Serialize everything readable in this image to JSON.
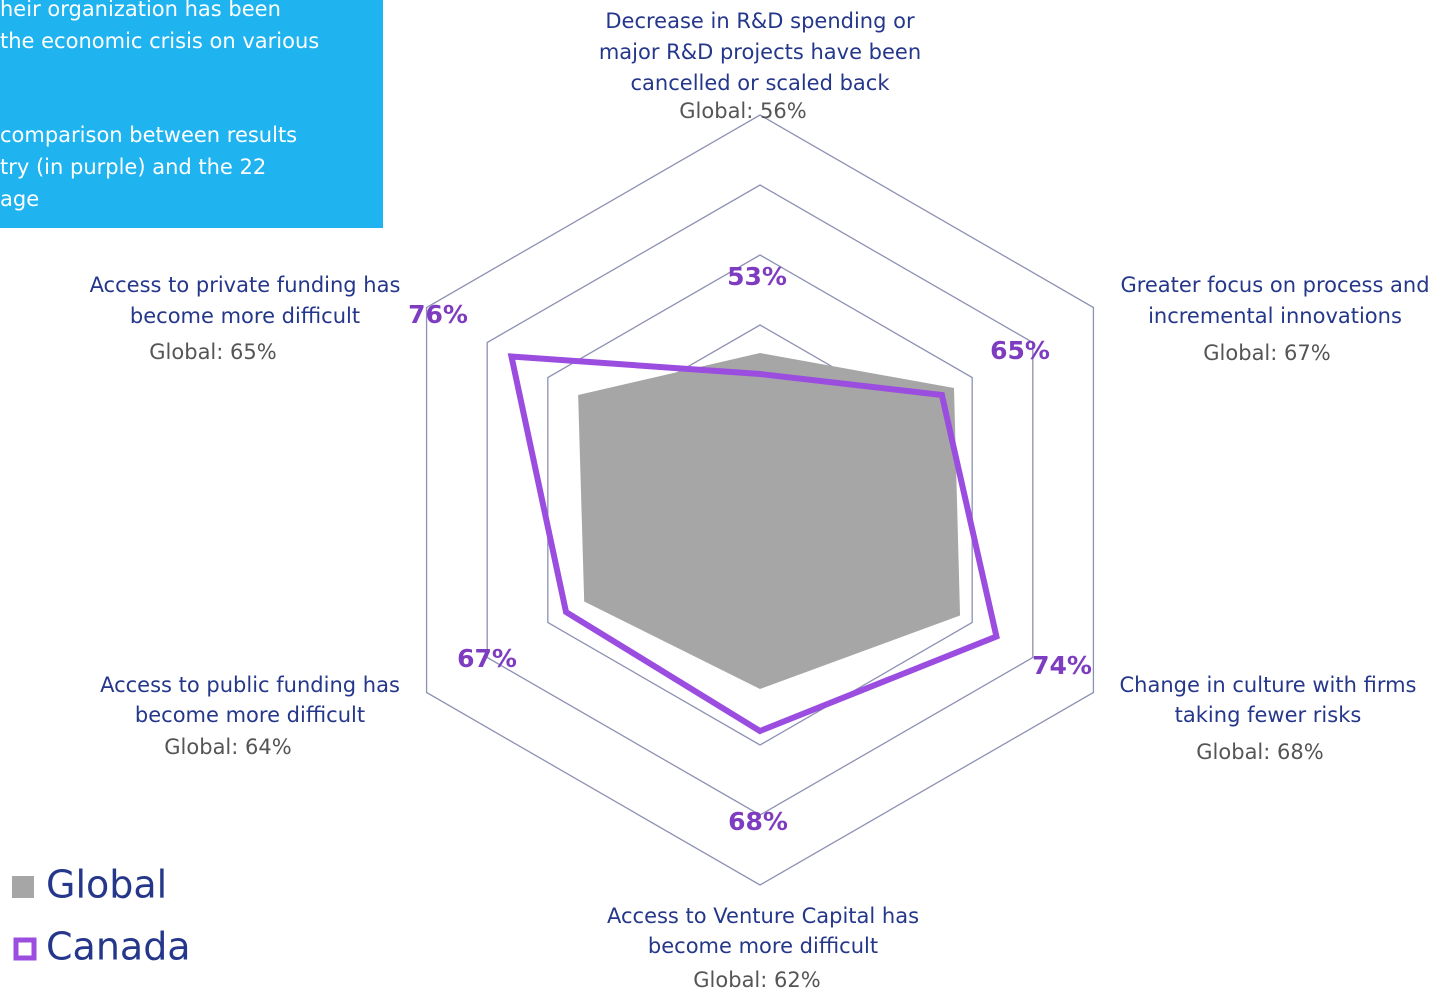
{
  "chart_data": {
    "type": "radar",
    "note_lines": [
      "heir organization has been",
      " the economic crisis on various",
      "",
      " comparison between results",
      "try (in purple) and the 22",
      "age"
    ],
    "categories": [
      "Decrease in R&D spending or\nmajor R&D projects have been\ncancelled or scaled back",
      "Greater focus on process and\nincremental innovations",
      "Change in culture with firms\ntaking fewer risks",
      "Access to Venture Capital has\nbecome more difficult",
      "Access to public funding has\nbecome more difficult",
      "Access to private funding has\nbecome more difficult"
    ],
    "series": [
      {
        "name": "Global",
        "color": "#a6a6a6",
        "values": [
          56,
          67,
          68,
          62,
          64,
          65
        ],
        "value_labels": [
          "Global: 56%",
          "Global: 67%",
          "Global: 68%",
          "Global: 62%",
          "Global: 64%",
          "Global: 65%"
        ]
      },
      {
        "name": "Canada",
        "color": "#9b4de0",
        "values": [
          53,
          65,
          74,
          68,
          67,
          76
        ],
        "value_labels": [
          "53%",
          "65%",
          "74%",
          "68%",
          "67%",
          "76%"
        ]
      }
    ],
    "rlim": [
      35,
      90
    ],
    "rticks": [
      60,
      70,
      80,
      90
    ]
  }
}
